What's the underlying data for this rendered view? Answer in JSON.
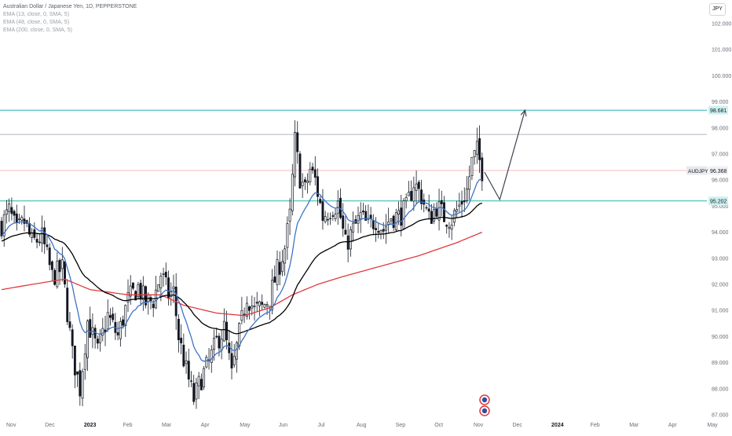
{
  "header": {
    "symbol_title": "Australian Dollar / Japanese Yen, 1D, PEPPERSTONE",
    "indicators": [
      "EMA (13, close, 0, SMA, 5)",
      "EMA (48, close, 0, SMA, 5)",
      "EMA (200, close, 0, SMA, 5)"
    ],
    "currency": "JPY"
  },
  "colors": {
    "candle": "#131722",
    "ema13": "#3d73c7",
    "ema48": "#000000",
    "ema200": "#e0393e",
    "level_line": "#26b5b0",
    "resistance_line": "#b2b5be",
    "last_price_line": "#f2a7a7",
    "axis_text": "#6a6d78"
  },
  "badges": {
    "target": "98.681",
    "symbol": "AUDJPY",
    "last_price": "96.368",
    "support": "95.202"
  },
  "chart_data": {
    "type": "candlestick",
    "symbol": "AUDJPY",
    "timeframe": "1D",
    "ylim": [
      86.9,
      102.6
    ],
    "y_ticks": [
      "102.000",
      "101.000",
      "100.000",
      "99.000",
      "98.000",
      "97.000",
      "96.000",
      "95.000",
      "94.000",
      "93.000",
      "92.000",
      "91.000",
      "90.000",
      "89.000",
      "88.000",
      "87.000"
    ],
    "x_ticks": [
      "Nov",
      "Dec",
      "2023",
      "Feb",
      "Mar",
      "Apr",
      "May",
      "Jun",
      "Jul",
      "Aug",
      "Sep",
      "Oct",
      "Nov",
      "Dec",
      "2024",
      "Feb",
      "Mar",
      "Apr",
      "May"
    ],
    "months": [
      "Nov",
      "Dec",
      "2023",
      "Feb",
      "Mar",
      "Apr",
      "May",
      "Jun",
      "Jul",
      "Aug",
      "Sep",
      "Oct",
      "Nov"
    ],
    "close_anchors": [
      [
        0,
        94.3
      ],
      [
        3,
        94.8
      ],
      [
        6,
        94.0
      ],
      [
        9,
        94.4
      ],
      [
        12,
        93.6
      ],
      [
        16,
        93.8
      ],
      [
        20,
        92.3
      ],
      [
        24,
        92.6
      ],
      [
        28,
        89.3
      ],
      [
        31,
        88.0
      ],
      [
        34,
        90.6
      ],
      [
        38,
        89.4
      ],
      [
        42,
        90.8
      ],
      [
        46,
        90.0
      ],
      [
        50,
        91.4
      ],
      [
        54,
        91.9
      ],
      [
        57,
        91.3
      ],
      [
        60,
        91.4
      ],
      [
        63,
        92.4
      ],
      [
        66,
        91.6
      ],
      [
        68,
        91.7
      ],
      [
        70,
        90.0
      ],
      [
        73,
        88.7
      ],
      [
        76,
        87.6
      ],
      [
        79,
        88.4
      ],
      [
        82,
        89.0
      ],
      [
        85,
        89.8
      ],
      [
        88,
        90.3
      ],
      [
        91,
        88.5
      ],
      [
        94,
        90.1
      ],
      [
        97,
        91.6
      ],
      [
        100,
        91.0
      ],
      [
        103,
        91.1
      ],
      [
        106,
        91.5
      ],
      [
        109,
        92.5
      ],
      [
        112,
        93.4
      ],
      [
        114,
        94.6
      ],
      [
        116,
        97.5
      ],
      [
        118,
        96.1
      ],
      [
        120,
        95.6
      ],
      [
        122,
        96.4
      ],
      [
        124,
        96.0
      ],
      [
        127,
        94.6
      ],
      [
        130,
        94.9
      ],
      [
        133,
        95.1
      ],
      [
        136,
        93.5
      ],
      [
        139,
        94.1
      ],
      [
        142,
        94.6
      ],
      [
        145,
        94.2
      ],
      [
        148,
        94.5
      ],
      [
        151,
        94.1
      ],
      [
        154,
        94.6
      ],
      [
        157,
        94.6
      ],
      [
        160,
        94.9
      ],
      [
        163,
        95.9
      ],
      [
        166,
        95.4
      ],
      [
        169,
        94.5
      ],
      [
        172,
        95.0
      ],
      [
        175,
        94.6
      ],
      [
        178,
        94.5
      ],
      [
        181,
        95.0
      ],
      [
        184,
        95.6
      ],
      [
        186,
        96.7
      ],
      [
        188,
        97.1
      ],
      [
        190,
        96.368
      ]
    ],
    "series": [
      {
        "name": "EMA (13, close, 0, SMA, 5)",
        "color": "#3d73c7"
      },
      {
        "name": "EMA (48, close, 0, SMA, 5)",
        "color": "#000000"
      },
      {
        "name": "EMA (200, close, 0, SMA, 5)",
        "color": "#e0393e",
        "anchors": [
          [
            0,
            91.8
          ],
          [
            12,
            92.0
          ],
          [
            25,
            92.2
          ],
          [
            35,
            91.8
          ],
          [
            50,
            91.6
          ],
          [
            63,
            91.6
          ],
          [
            72,
            91.2
          ],
          [
            85,
            90.9
          ],
          [
            96,
            90.8
          ],
          [
            106,
            91.1
          ],
          [
            115,
            91.6
          ],
          [
            125,
            92.0
          ],
          [
            135,
            92.3
          ],
          [
            150,
            92.7
          ],
          [
            165,
            93.1
          ],
          [
            180,
            93.6
          ],
          [
            190,
            94.0
          ]
        ]
      }
    ],
    "levels": [
      {
        "name": "target",
        "value": 98.681
      },
      {
        "name": "resistance",
        "value": 97.75
      },
      {
        "name": "last",
        "value": 96.368
      },
      {
        "name": "support",
        "value": 95.202
      }
    ],
    "projection": [
      {
        "day": 191,
        "value": 96.3
      },
      {
        "day": 197,
        "value": 95.25
      },
      {
        "day": 207,
        "value": 98.68
      }
    ],
    "bars_total": 191,
    "grid": false
  }
}
